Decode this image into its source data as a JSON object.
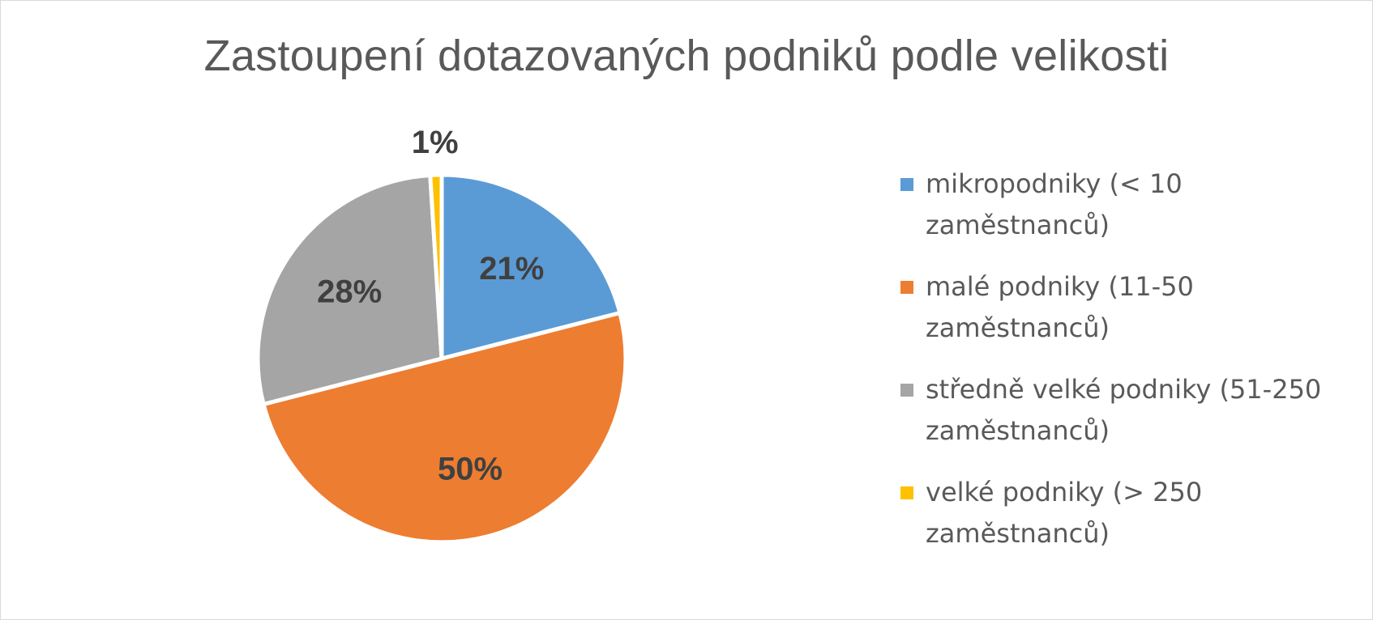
{
  "chart_data": {
    "type": "pie",
    "title": "Zastoupení dotazovaných podniků podle velikosti",
    "legend_position": "right",
    "slices": [
      {
        "label": "mikropodniky (< 10 zaměstnanců)",
        "line1": "mikropodniky (< 10",
        "line2": "zaměstnanců)",
        "value": 21,
        "display": "21%",
        "color": "#5b9bd5"
      },
      {
        "label": "malé podniky (11-50 zaměstnanců)",
        "line1": "malé podniky (11-50",
        "line2": "zaměstnanců)",
        "value": 50,
        "display": "50%",
        "color": "#ed7d31"
      },
      {
        "label": "středně velké podniky (51-250 zaměstnanců)",
        "line1": "středně velké podniky (51-250",
        "line2": "zaměstnanců)",
        "value": 28,
        "display": "28%",
        "color": "#a5a5a5"
      },
      {
        "label": "velké podniky (> 250 zaměstnanců)",
        "line1": "velké podniky (> 250",
        "line2": "zaměstnanců)",
        "value": 1,
        "display": "1%",
        "color": "#ffc000"
      }
    ],
    "label_color": "#404040",
    "separator_color": "#ffffff"
  }
}
